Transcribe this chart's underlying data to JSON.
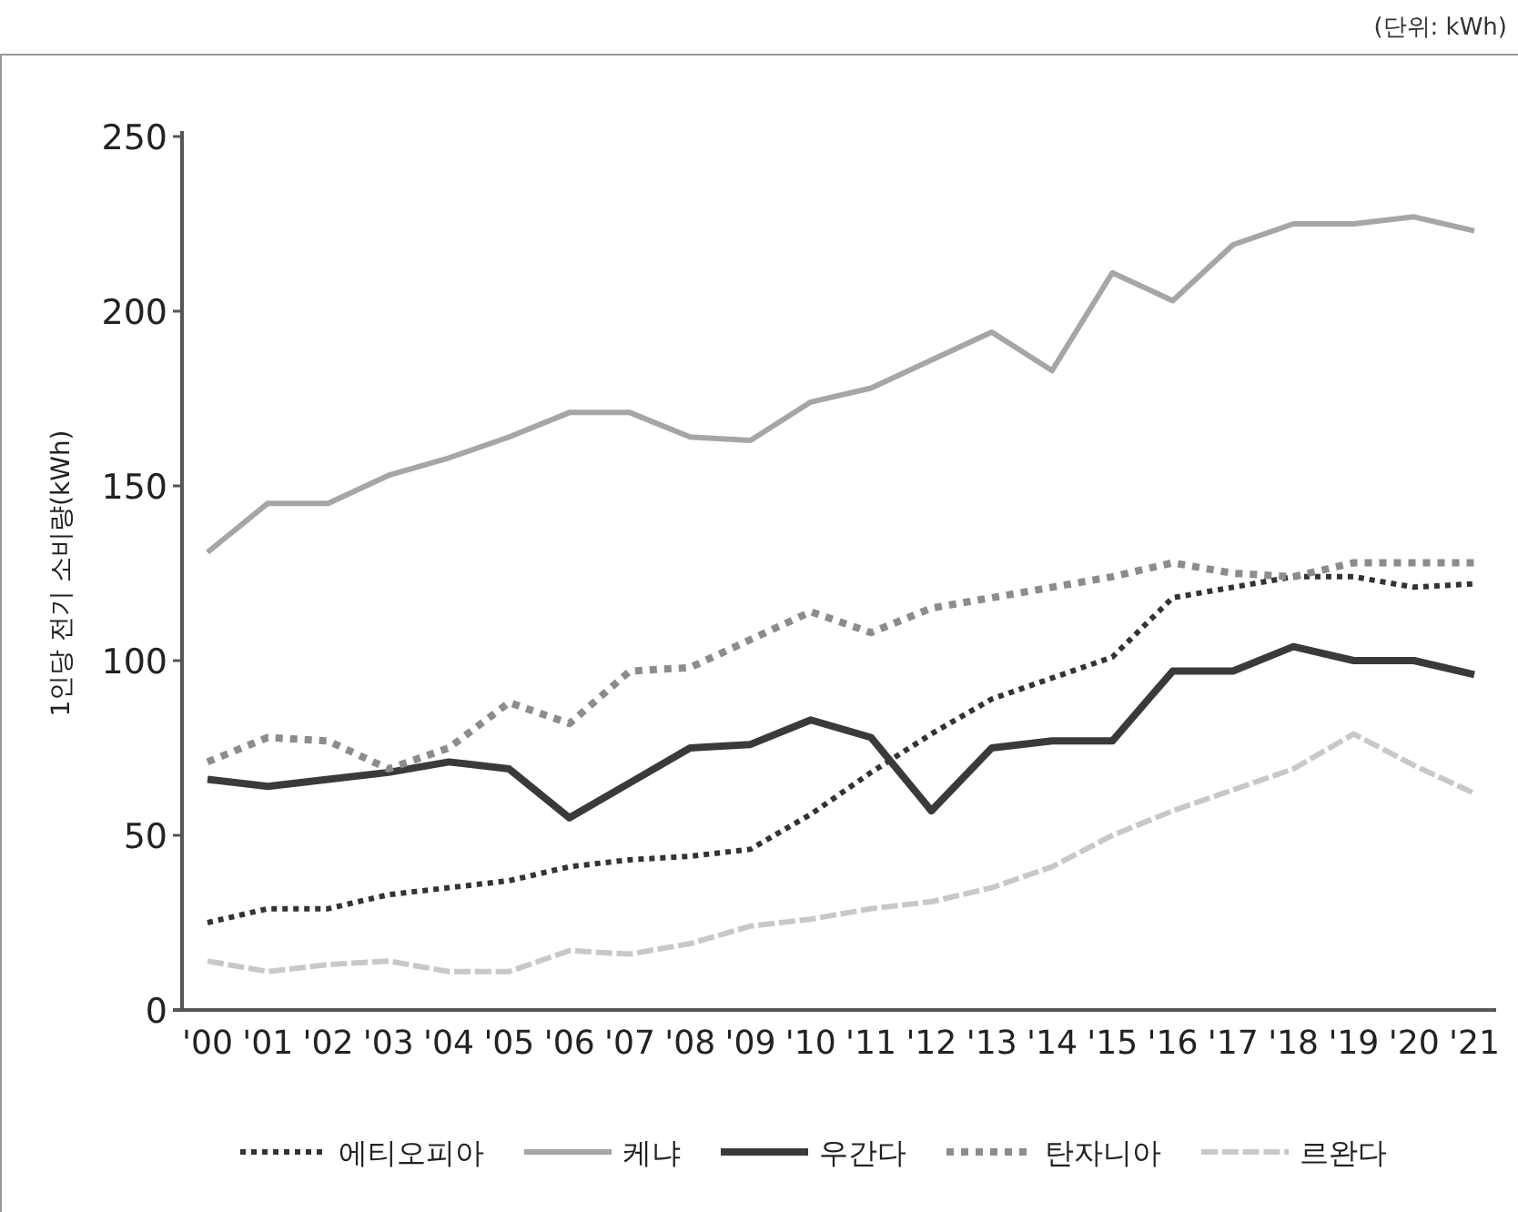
{
  "chart_data": {
    "type": "line",
    "ylabel": "1인당 전기 소비량(kWh)",
    "annotations": [
      "(단위: kWh)"
    ],
    "categories": [
      "'00",
      "'01",
      "'02",
      "'03",
      "'04",
      "'05",
      "'06",
      "'07",
      "'08",
      "'09",
      "'10",
      "'11",
      "'12",
      "'13",
      "'14",
      "'15",
      "'16",
      "'17",
      "'18",
      "'19",
      "'20",
      "'21"
    ],
    "ylim": [
      0,
      250
    ],
    "yticks": [
      0,
      50,
      100,
      150,
      200,
      250
    ],
    "legend": "bottom",
    "grid": false,
    "series": [
      {
        "name": "에티오피아",
        "color": "#333333",
        "line_style": "dotted",
        "values": [
          25,
          29,
          29,
          33,
          35,
          37,
          41,
          43,
          44,
          46,
          56,
          68,
          79,
          89,
          95,
          101,
          118,
          121,
          124,
          124,
          121,
          122
        ]
      },
      {
        "name": "케냐",
        "color": "#a6a6a6",
        "line_style": "solid",
        "values": [
          131,
          145,
          145,
          153,
          158,
          164,
          171,
          171,
          164,
          163,
          174,
          178,
          186,
          194,
          183,
          211,
          203,
          219,
          225,
          225,
          227,
          223
        ]
      },
      {
        "name": "우간다",
        "color": "#3a3a3a",
        "line_style": "solid",
        "values": [
          66,
          64,
          66,
          68,
          71,
          69,
          55,
          65,
          75,
          76,
          83,
          78,
          57,
          75,
          77,
          77,
          97,
          97,
          104,
          100,
          100,
          96
        ]
      },
      {
        "name": "탄자니아",
        "color": "#8c8c8c",
        "line_style": "dotted",
        "values": [
          71,
          78,
          77,
          69,
          75,
          88,
          82,
          97,
          98,
          106,
          114,
          108,
          115,
          118,
          121,
          124,
          128,
          125,
          124,
          128,
          128,
          128
        ]
      },
      {
        "name": "르완다",
        "color": "#c8c8c8",
        "line_style": "dashed",
        "values": [
          14,
          11,
          13,
          14,
          11,
          11,
          17,
          16,
          19,
          24,
          26,
          29,
          31,
          35,
          41,
          50,
          57,
          63,
          69,
          79,
          70,
          62
        ]
      }
    ]
  }
}
